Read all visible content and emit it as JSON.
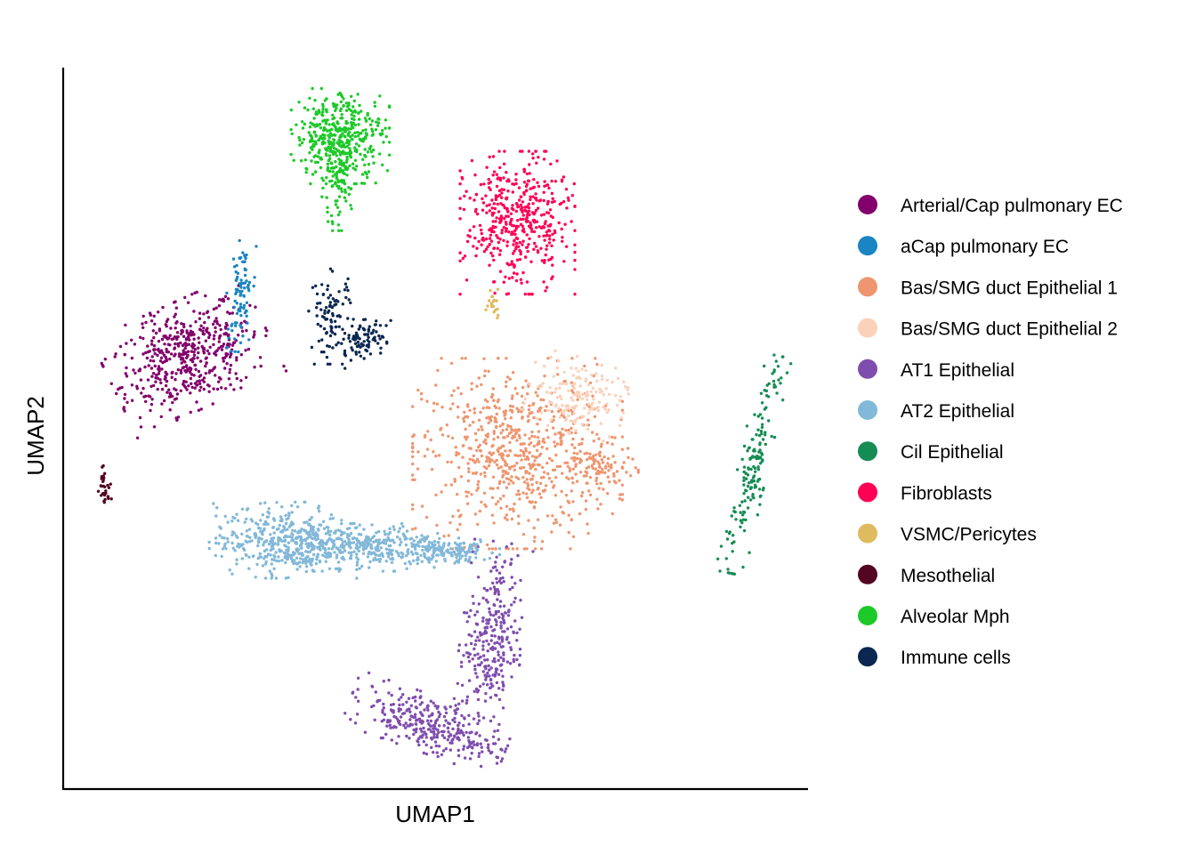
{
  "chart_data": {
    "type": "scatter",
    "xlabel": "UMAP1",
    "ylabel": "UMAP2",
    "xlim": [
      0,
      100
    ],
    "ylim": [
      0,
      100
    ],
    "grid": false,
    "axis_ticks": false,
    "legend_position": "right",
    "series": [
      {
        "name": "Arterial/Cap pulmonary EC",
        "color": "#82006B",
        "clusters": [
          {
            "cx": 16.8,
            "cy": 60.1,
            "sx": 5.0,
            "sy": 3.4,
            "n": 500,
            "rot": 25
          }
        ]
      },
      {
        "name": "aCap pulmonary EC",
        "color": "#1A85C2",
        "clusters": [
          {
            "cx": 23.7,
            "cy": 68.3,
            "sx": 0.8,
            "sy": 3.5,
            "n": 90,
            "rot": -5
          }
        ]
      },
      {
        "name": "Bas/SMG duct Epithelial 1",
        "color": "#EE9670",
        "clusters": [
          {
            "cx": 61.0,
            "cy": 46.5,
            "sx": 6.4,
            "sy": 6.0,
            "n": 700,
            "rot": 0
          },
          {
            "cx": 71.5,
            "cy": 44.5,
            "sx": 2.6,
            "sy": 1.5,
            "n": 80,
            "rot": 0
          }
        ]
      },
      {
        "name": "Bas/SMG duct Epithelial 2",
        "color": "#FBD1BA",
        "clusters": [
          {
            "cx": 69.0,
            "cy": 54.5,
            "sx": 3.0,
            "sy": 2.4,
            "n": 160,
            "rot": -15
          }
        ]
      },
      {
        "name": "AT1 Epithelial",
        "color": "#7F4DAE",
        "clusters": [
          {
            "cx": 57.5,
            "cy": 20.5,
            "sx": 1.9,
            "sy": 6.5,
            "n": 300,
            "rot": -8
          },
          {
            "cx": 49.0,
            "cy": 9.0,
            "sx": 5.0,
            "sy": 1.8,
            "n": 300,
            "rot": -20
          }
        ]
      },
      {
        "name": "AT2 Epithelial",
        "color": "#82B8D8",
        "clusters": [
          {
            "cx": 29.5,
            "cy": 34.5,
            "sx": 4.5,
            "sy": 2.4,
            "n": 400,
            "rot": 0
          },
          {
            "cx": 41.0,
            "cy": 33.5,
            "sx": 5.5,
            "sy": 1.5,
            "n": 360,
            "rot": 0
          },
          {
            "cx": 52.0,
            "cy": 33.0,
            "sx": 3.0,
            "sy": 0.8,
            "n": 120,
            "rot": 0
          }
        ]
      },
      {
        "name": "Cil Epithelial",
        "color": "#168C55",
        "clusters": [
          {
            "cx": 92.7,
            "cy": 45.0,
            "sx": 0.9,
            "sy": 7.0,
            "n": 170,
            "rot": -12
          }
        ]
      },
      {
        "name": "Fibroblasts",
        "color": "#FF0055",
        "clusters": [
          {
            "cx": 61.0,
            "cy": 78.5,
            "sx": 3.5,
            "sy": 4.5,
            "n": 450,
            "rot": 0
          }
        ]
      },
      {
        "name": "VSMC/Pericytes",
        "color": "#DFBA5E",
        "clusters": [
          {
            "cx": 57.8,
            "cy": 67.5,
            "sx": 0.6,
            "sy": 1.0,
            "n": 20,
            "rot": 0
          }
        ]
      },
      {
        "name": "Mesothelial",
        "color": "#530522",
        "clusters": [
          {
            "cx": 5.6,
            "cy": 42.2,
            "sx": 0.4,
            "sy": 1.4,
            "n": 30,
            "rot": 0
          }
        ]
      },
      {
        "name": "Alveolar Mph",
        "color": "#1DC928",
        "clusters": [
          {
            "cx": 37.2,
            "cy": 90.5,
            "sx": 3.0,
            "sy": 3.0,
            "n": 400,
            "rot": 0
          },
          {
            "cx": 36.6,
            "cy": 84.0,
            "sx": 1.0,
            "sy": 3.0,
            "n": 100,
            "rot": 0
          }
        ]
      },
      {
        "name": "Immune cells",
        "color": "#0A2651",
        "clusters": [
          {
            "cx": 36.0,
            "cy": 65.5,
            "sx": 1.4,
            "sy": 3.0,
            "n": 90,
            "rot": 0
          },
          {
            "cx": 40.5,
            "cy": 62.5,
            "sx": 2.0,
            "sy": 1.3,
            "n": 90,
            "rot": 30
          }
        ]
      }
    ]
  }
}
